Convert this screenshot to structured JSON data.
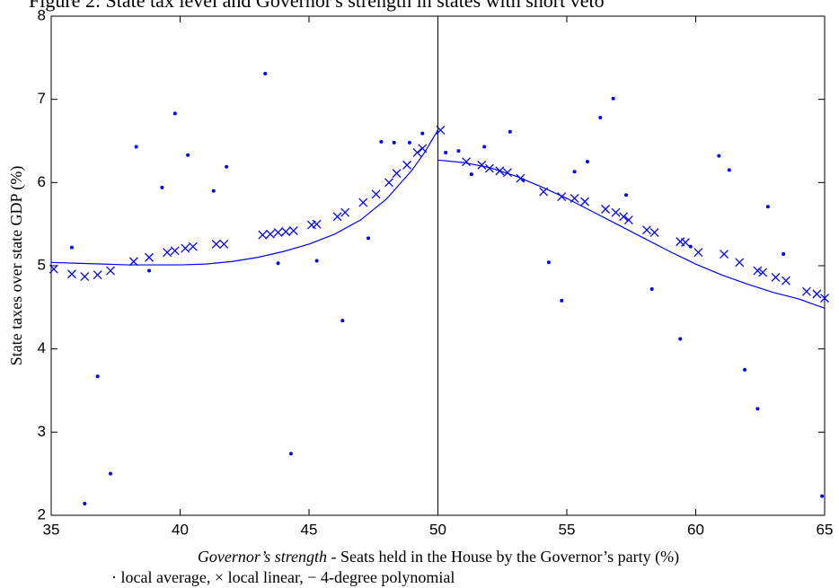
{
  "chart_data": {
    "type": "scatter",
    "title": "Figure 2: State tax level and Governor's strength in states with short veto",
    "xlabel": [
      "Governor’s strength",
      " - Seats held in the House by the Governor’s party (%)"
    ],
    "ylabel": "State taxes over state GDP (%)",
    "note": "· local average, × local linear, − 4-degree polynomial",
    "xlim": [
      35,
      65
    ],
    "ylim": [
      2,
      8
    ],
    "xticks": [
      35,
      40,
      45,
      50,
      55,
      60,
      65
    ],
    "yticks": [
      2,
      3,
      4,
      5,
      6,
      7,
      8
    ],
    "vline": 50,
    "series": [
      {
        "marker": "dot",
        "color": "#0000ff",
        "x": [
          35.8,
          36.3,
          36.8,
          37.3,
          38.3,
          38.8,
          39.3,
          39.8,
          40.3,
          41.3,
          41.8,
          43.3,
          43.8,
          44.3,
          45.3,
          46.3,
          47.3,
          47.8,
          48.3,
          48.9,
          49.4,
          50.3,
          50.8,
          51.3,
          51.8,
          52.8,
          53.3,
          54.3,
          54.8,
          55.3,
          55.8,
          56.3,
          56.8,
          57.3,
          58.3,
          59.4,
          59.8,
          60.9,
          61.3,
          61.9,
          62.4,
          62.8,
          63.4,
          64.9
        ],
        "values": [
          5.22,
          2.14,
          3.67,
          2.5,
          6.43,
          4.94,
          5.94,
          6.83,
          6.33,
          5.9,
          6.19,
          7.31,
          5.03,
          2.74,
          5.06,
          4.34,
          5.33,
          6.49,
          6.48,
          6.48,
          6.59,
          6.36,
          6.38,
          6.1,
          6.43,
          6.61,
          6.03,
          5.04,
          4.58,
          6.13,
          6.25,
          6.78,
          7.01,
          5.85,
          4.72,
          4.12,
          5.23,
          6.32,
          6.15,
          3.75,
          3.28,
          5.71,
          5.14,
          2.23
        ]
      },
      {
        "marker": "x",
        "color": "#0000ff",
        "x": [
          35.1,
          35.8,
          36.3,
          36.8,
          37.3,
          38.2,
          38.8,
          39.5,
          39.8,
          40.2,
          40.5,
          41.4,
          41.7,
          43.2,
          43.5,
          43.8,
          44.1,
          44.4,
          45.1,
          45.3,
          46.1,
          46.4,
          47.1,
          47.6,
          48.1,
          48.4,
          48.8,
          49.2,
          49.4,
          50.1,
          51.1,
          51.7,
          52.0,
          52.4,
          52.7,
          53.2,
          54.1,
          54.8,
          55.3,
          55.7,
          56.5,
          56.9,
          57.2,
          57.4,
          58.1,
          58.4,
          59.4,
          59.6,
          60.1,
          61.1,
          61.7,
          62.4,
          62.6,
          63.1,
          63.5,
          64.3,
          64.7,
          65.0
        ],
        "values": [
          4.96,
          4.9,
          4.87,
          4.89,
          4.94,
          5.05,
          5.1,
          5.16,
          5.18,
          5.21,
          5.23,
          5.26,
          5.26,
          5.37,
          5.38,
          5.4,
          5.41,
          5.42,
          5.49,
          5.5,
          5.59,
          5.64,
          5.76,
          5.86,
          6.0,
          6.11,
          6.21,
          6.36,
          6.41,
          6.63,
          6.25,
          6.21,
          6.17,
          6.14,
          6.12,
          6.05,
          5.89,
          5.83,
          5.81,
          5.77,
          5.68,
          5.64,
          5.59,
          5.55,
          5.43,
          5.4,
          5.29,
          5.28,
          5.16,
          5.14,
          5.04,
          4.94,
          4.92,
          4.86,
          4.82,
          4.69,
          4.66,
          4.61
        ]
      },
      {
        "marker": "line",
        "color": "#0000ff",
        "x": [
          35,
          36,
          37,
          38,
          39,
          40,
          41,
          42,
          43,
          44,
          45,
          46,
          47,
          48,
          49,
          49.5,
          50
        ],
        "values": [
          5.04,
          5.03,
          5.02,
          5.01,
          5.01,
          5.01,
          5.02,
          5.05,
          5.1,
          5.17,
          5.26,
          5.38,
          5.55,
          5.8,
          6.15,
          6.37,
          6.63
        ]
      },
      {
        "marker": "line",
        "color": "#0000ff",
        "x": [
          50,
          51,
          52,
          53,
          54,
          55,
          56,
          57,
          58,
          59,
          60,
          61,
          62,
          63,
          64,
          65
        ],
        "values": [
          6.27,
          6.24,
          6.18,
          6.08,
          5.95,
          5.81,
          5.65,
          5.49,
          5.33,
          5.17,
          5.02,
          4.89,
          4.78,
          4.68,
          4.6,
          4.49
        ]
      }
    ]
  }
}
